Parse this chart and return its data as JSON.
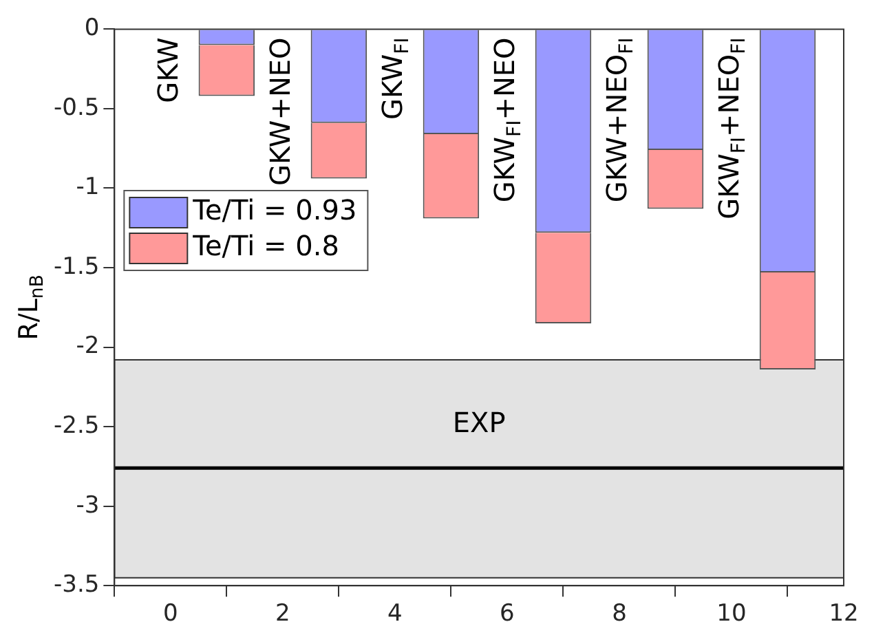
{
  "chart_data": {
    "type": "bar",
    "stacked": true,
    "ylabel": "R/L$_{nB}$",
    "x": [
      1,
      3,
      5,
      7,
      9,
      11
    ],
    "series": [
      {
        "name": "Te/Ti = 0.93",
        "color": "#9999ff",
        "values": [
          -0.1,
          -0.59,
          -0.66,
          -1.28,
          -0.76,
          -1.53
        ]
      },
      {
        "name": "Te/Ti = 0.8",
        "color": "#ff9999",
        "values": [
          -0.32,
          -0.35,
          -0.53,
          -0.57,
          -0.37,
          -0.61
        ]
      }
    ],
    "xlim": [
      -1,
      12
    ],
    "xticks": [
      0,
      2,
      4,
      6,
      8,
      10,
      12
    ],
    "ylim": [
      -3.5,
      0
    ],
    "yticks": [
      -3.5,
      -3,
      -2.5,
      -2,
      -1.5,
      -1,
      -0.5,
      0
    ],
    "bands": [
      {
        "axis": "y",
        "from": -2.08,
        "to": -3.45,
        "label": "EXP",
        "color": "#e3e3e3"
      }
    ],
    "ref_lines": [
      {
        "axis": "y",
        "value": -2.76,
        "color": "#000000"
      }
    ],
    "annotations": [
      "GKW",
      "GKW+NEO",
      "GKW$_{FI}$",
      "GKW$_{FI}$+NEO",
      "GKW+NEO$_{FI}$",
      "GKW$_{FI}$+NEO$_{FI}$"
    ],
    "legend": "left"
  }
}
